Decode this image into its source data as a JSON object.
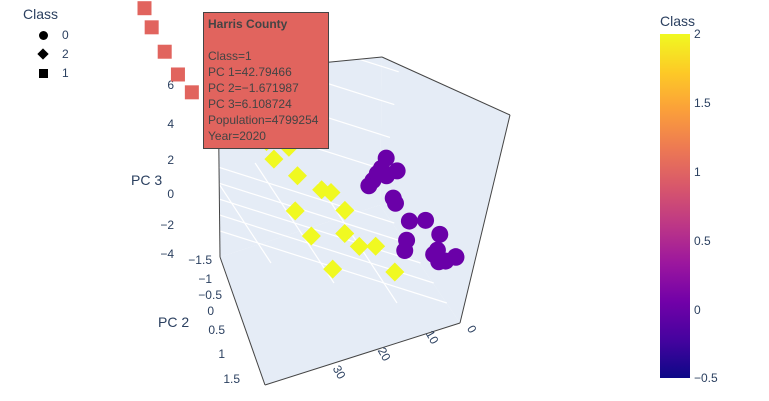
{
  "legend": {
    "title": "Class",
    "items": [
      {
        "label": "0",
        "symbol": "circle"
      },
      {
        "label": "2",
        "symbol": "diamond"
      },
      {
        "label": "1",
        "symbol": "square"
      }
    ]
  },
  "colorbar": {
    "title": "Class",
    "ticks": [
      "2",
      "1.5",
      "1",
      "0.5",
      "0",
      "−0.5"
    ],
    "range": [
      -0.5,
      2
    ],
    "colorscale": "plasma"
  },
  "tooltip": {
    "title": "Harris County",
    "lines": [
      "Class=1",
      "PC 1=42.79466",
      "PC 2=−1.671987",
      "PC 3=6.108724",
      "Population=4799254",
      "Year=2020"
    ],
    "color": "#e1645e"
  },
  "chart_data": {
    "type": "scatter",
    "mode": "3d",
    "axes": {
      "x": {
        "title": "",
        "ticks": [
          "0",
          "10",
          "20",
          "30"
        ]
      },
      "y": {
        "title": "PC 2",
        "ticks": [
          "−1.5",
          "−1",
          "−0.5",
          "0",
          "0.5",
          "1",
          "1.5"
        ]
      },
      "z": {
        "title": "PC 3",
        "ticks": [
          "6",
          "4",
          "2",
          "0",
          "−2",
          "−4"
        ]
      }
    },
    "colors": {
      "class_0": "#6a00a8",
      "class_1": "#e1645e",
      "class_2": "#f0f921"
    },
    "series": [
      {
        "name": "0",
        "symbol": "circle",
        "color": "#6a00a8",
        "points": [
          [
            8,
            -0.3,
            -1
          ],
          [
            7,
            -0.4,
            -0.8
          ],
          [
            6,
            -0.5,
            -0.5
          ],
          [
            5,
            -0.6,
            -0.3
          ],
          [
            4,
            -0.7,
            0.2
          ],
          [
            6,
            -0.2,
            0.1
          ],
          [
            3,
            0.6,
            -0.3
          ],
          [
            4,
            0.3,
            -1.2
          ],
          [
            5,
            0.5,
            -2
          ],
          [
            7,
            0.9,
            -1.9
          ],
          [
            2,
            1.2,
            -1.2
          ],
          [
            3,
            1.1,
            -0.9
          ],
          [
            2,
            0.9,
            -0.3
          ],
          [
            1,
            1.3,
            -0.6
          ],
          [
            2,
            1.5,
            -0.2
          ],
          [
            4,
            1.4,
            -1
          ],
          [
            3,
            1.0,
            -1.4
          ],
          [
            6,
            0.2,
            -0.6
          ],
          [
            5,
            -0.1,
            -0.9
          ],
          [
            4,
            -0.3,
            0.4
          ]
        ]
      },
      {
        "name": "2",
        "symbol": "diamond",
        "color": "#f0f921",
        "points": [
          [
            22,
            -1.5,
            2
          ],
          [
            24,
            -0.9,
            1.5
          ],
          [
            21,
            -1.1,
            0.2
          ],
          [
            26,
            -0.6,
            0.1
          ],
          [
            24,
            -0.4,
            -0.5
          ],
          [
            20,
            -0.5,
            -0.6
          ],
          [
            23,
            -0.3,
            -1.2
          ],
          [
            21,
            0.1,
            -1
          ],
          [
            18,
            0.3,
            -1
          ],
          [
            17,
            0.4,
            -0.8
          ],
          [
            15,
            0.5,
            -1.4
          ],
          [
            16,
            0.8,
            -2.2
          ],
          [
            12,
            1.0,
            -2
          ],
          [
            24,
            0.8,
            -1.8
          ],
          [
            22,
            1.0,
            -2.6
          ],
          [
            14,
            0.9,
            -2.5
          ],
          [
            10,
            1.3,
            -2.6
          ],
          [
            20,
            1.4,
            -3.4
          ]
        ]
      },
      {
        "name": "1",
        "symbol": "square",
        "color": "#e1645e",
        "points": [
          [
            42.79466,
            -1.671987,
            6.108724
          ],
          [
            40,
            -1.5,
            3
          ],
          [
            39,
            -1.4,
            2.2
          ],
          [
            37,
            -1.3,
            1.2
          ],
          [
            35,
            -1.2,
            0.3
          ],
          [
            33,
            -1.1,
            -0.3
          ],
          [
            30,
            -0.8,
            -1.0
          ]
        ]
      }
    ]
  }
}
